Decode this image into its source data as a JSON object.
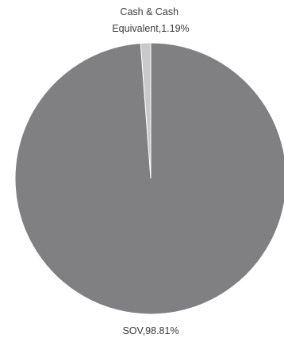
{
  "chart_data": {
    "type": "pie",
    "slices": [
      {
        "label": "SOV",
        "value": 98.81,
        "color": "#808083",
        "label_lines": [
          "SOV,98.81%"
        ]
      },
      {
        "label": "Cash & Cash Equivalent",
        "value": 1.19,
        "color": "#c9c9c9",
        "label_lines": [
          "Cash & Cash",
          "Equivalent,1.19%"
        ]
      }
    ],
    "legend": "none"
  }
}
